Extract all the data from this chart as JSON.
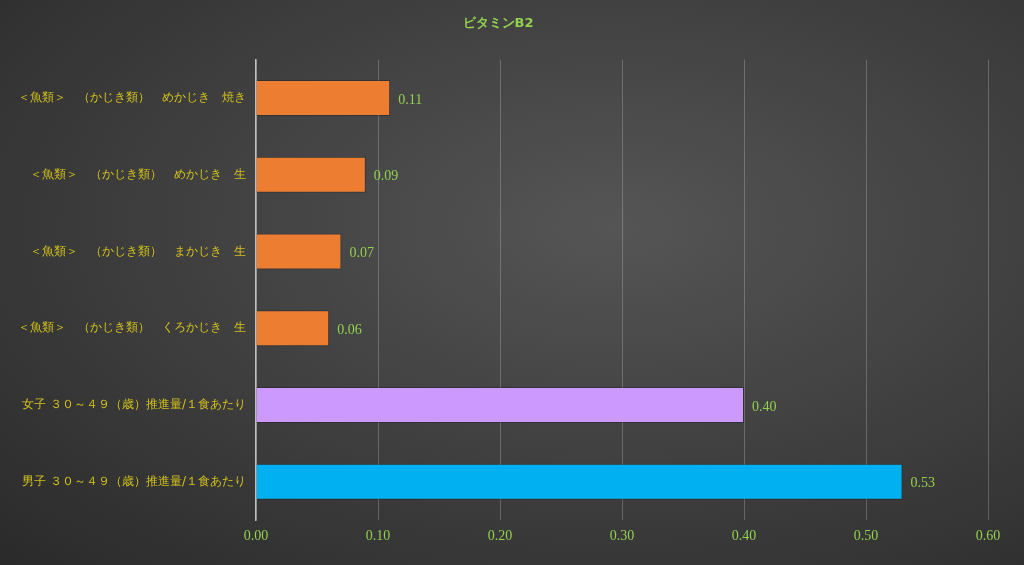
{
  "chart_data": {
    "type": "bar",
    "orientation": "horizontal",
    "title": "ビタミンB2",
    "categories": [
      "＜魚類＞　（かじき類）　めかじき　焼き",
      "＜魚類＞　（かじき類）　めかじき　生",
      "＜魚類＞　（かじき類）　まかじき　生",
      "＜魚類＞　（かじき類）　くろかじき　生",
      "女子 ３０～４９（歳）推進量/１食あたり",
      "男子 ３０～４９（歳）推進量/１食あたり"
    ],
    "values": [
      0.11,
      0.09,
      0.07,
      0.06,
      0.4,
      0.53
    ],
    "value_labels": [
      "0.11",
      "0.09",
      "0.07",
      "0.06",
      "0.40",
      "0.53"
    ],
    "colors": [
      "#ed7d31",
      "#ed7d31",
      "#ed7d31",
      "#ed7d31",
      "#cc99ff",
      "#00b0f0"
    ],
    "xlim": [
      0,
      0.6
    ],
    "xticks": [
      {
        "value": 0,
        "label": "0.00"
      },
      {
        "value": 0.1,
        "label": "0.10"
      },
      {
        "value": 0.2,
        "label": "0.20"
      },
      {
        "value": 0.3,
        "label": "0.30"
      },
      {
        "value": 0.4,
        "label": "0.40"
      },
      {
        "value": 0.5,
        "label": "0.50"
      },
      {
        "value": 0.6,
        "label": "0.60"
      }
    ],
    "grid": "x",
    "legend": false
  }
}
